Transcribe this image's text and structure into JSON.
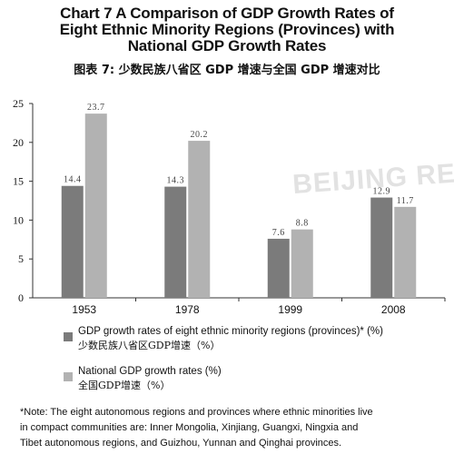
{
  "title": {
    "line1": "Chart 7  A Comparison of GDP Growth Rates of",
    "line2": "Eight Ethnic Minority Regions (Provinces) with",
    "line3": "National GDP Growth Rates",
    "zh": "图表 7: 少数民族八省区 GDP 增速与全国 GDP 增速对比"
  },
  "legend": {
    "minority_en": "GDP growth rates of eight ethnic minority regions (provinces)* (%)",
    "minority_zh": "少数民族八省区GDP增速（%）",
    "national_en": "National GDP growth rates (%)",
    "national_zh": "全国GDP增速（%）"
  },
  "note": {
    "line1": "*Note: The eight autonomous regions and provinces where ethnic minorities live",
    "line2": "in compact communities are: Inner Mongolia, Xinjiang, Guangxi, Ningxia and",
    "line3": "Tibet autonomous regions, and Guizhou, Yunnan and Qinghai provinces."
  },
  "watermark": "BEIJING REVIEW",
  "colors": {
    "minority": "#7b7b7b",
    "national": "#b2b2b2",
    "axis": "#333333",
    "text": "#111111"
  },
  "chart_data": {
    "type": "bar",
    "categories": [
      "1953",
      "1978",
      "1999",
      "2008"
    ],
    "series": [
      {
        "name": "GDP growth rates of eight ethnic minority regions (provinces)* (%)",
        "values": [
          14.4,
          14.3,
          7.6,
          12.9
        ]
      },
      {
        "name": "National GDP growth rates (%)",
        "values": [
          23.7,
          20.2,
          8.8,
          11.7
        ]
      }
    ],
    "value_labels": [
      [
        "14.4",
        "14.3",
        "7.6",
        "12.9"
      ],
      [
        "23.7",
        "20.2",
        "8.8",
        "11.7"
      ]
    ],
    "yticks": [
      "0",
      "5",
      "10",
      "15",
      "20",
      "25"
    ],
    "ylim": [
      0,
      25
    ],
    "grid": false,
    "legend_position": "bottom"
  }
}
